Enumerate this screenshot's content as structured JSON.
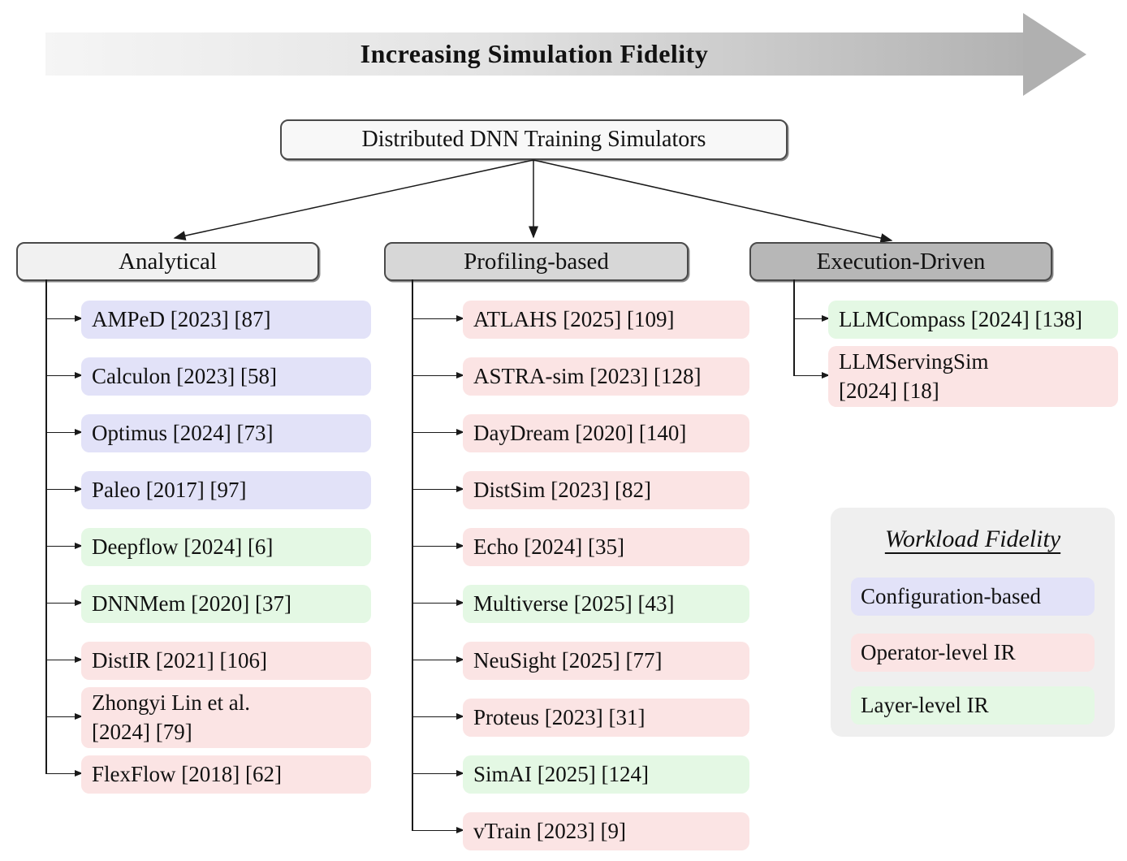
{
  "top_banner": {
    "label": "Increasing Simulation Fidelity"
  },
  "root": {
    "label": "Distributed DNN Training Simulators"
  },
  "legend": {
    "title": "Workload Fidelity",
    "entries": [
      {
        "label": "Configuration-based",
        "key": "configuration",
        "color": "#e2e2f8"
      },
      {
        "label": "Operator-level IR",
        "key": "operator",
        "color": "#fbe4e4"
      },
      {
        "label": "Layer-level IR",
        "key": "layer",
        "color": "#e4f8e4"
      }
    ]
  },
  "tree": {
    "columns": [
      {
        "label": "Analytical",
        "header_color": "#f1f1f1",
        "items": [
          {
            "label": "AMPeD [2023] [87]",
            "fidelity": "configuration"
          },
          {
            "label": "Calculon [2023] [58]",
            "fidelity": "configuration"
          },
          {
            "label": "Optimus [2024] [73]",
            "fidelity": "configuration"
          },
          {
            "label": "Paleo [2017] [97]",
            "fidelity": "configuration"
          },
          {
            "label": "Deepflow [2024] [6]",
            "fidelity": "layer"
          },
          {
            "label": "DNNMem [2020] [37]",
            "fidelity": "layer"
          },
          {
            "label": "DistIR [2021] [106]",
            "fidelity": "operator"
          },
          {
            "label": "Zhongyi Lin et al.\n[2024] [79]",
            "fidelity": "operator"
          },
          {
            "label": "FlexFlow [2018] [62]",
            "fidelity": "operator"
          }
        ]
      },
      {
        "label": "Profiling-based",
        "header_color": "#d7d7d7",
        "items": [
          {
            "label": "ATLAHS [2025] [109]",
            "fidelity": "operator"
          },
          {
            "label": "ASTRA-sim [2023] [128]",
            "fidelity": "operator"
          },
          {
            "label": "DayDream [2020] [140]",
            "fidelity": "operator"
          },
          {
            "label": "DistSim [2023] [82]",
            "fidelity": "operator"
          },
          {
            "label": "Echo [2024] [35]",
            "fidelity": "operator"
          },
          {
            "label": "Multiverse [2025] [43]",
            "fidelity": "layer"
          },
          {
            "label": "NeuSight [2025] [77]",
            "fidelity": "operator"
          },
          {
            "label": "Proteus [2023] [31]",
            "fidelity": "operator"
          },
          {
            "label": "SimAI [2025] [124]",
            "fidelity": "layer"
          },
          {
            "label": "vTrain [2023] [9]",
            "fidelity": "operator"
          }
        ]
      },
      {
        "label": "Execution-Driven",
        "header_color": "#b7b7b7",
        "items": [
          {
            "label": "LLMCompass [2024] [138]",
            "fidelity": "layer"
          },
          {
            "label": "LLMServingSim\n[2024] [18]",
            "fidelity": "operator"
          }
        ]
      }
    ]
  }
}
